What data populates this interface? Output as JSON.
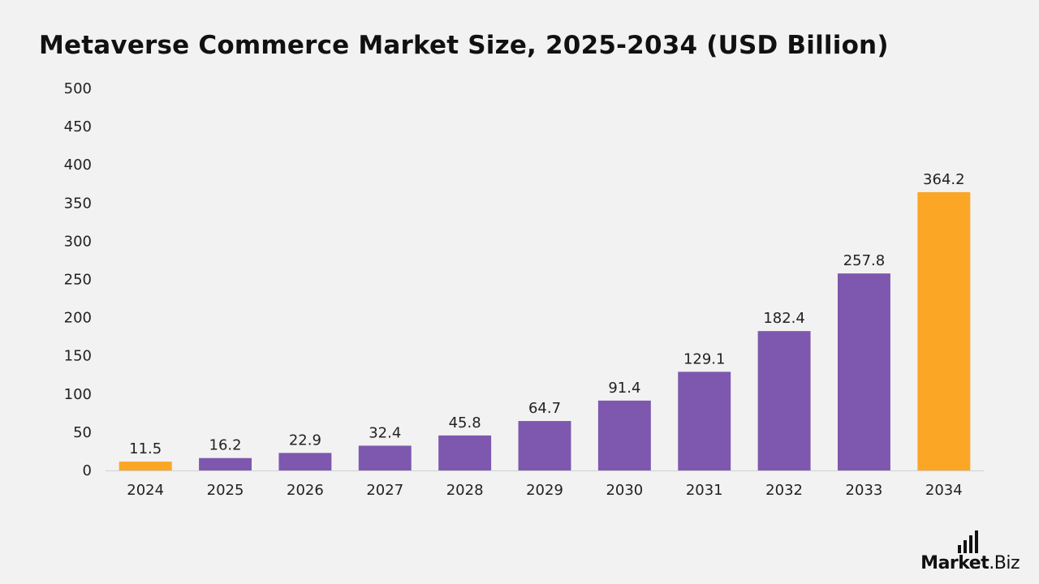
{
  "title": "Metaverse Commerce Market Size, 2025-2034 (USD Billion)",
  "brand": {
    "name_bold": "Market",
    "name_rest": ".Biz"
  },
  "colors": {
    "background": "#f2f2f2",
    "highlight": "#FBA624",
    "primary": "#7E58AE",
    "axis": "#d0d0d0",
    "text": "#222222"
  },
  "chart_data": {
    "type": "bar",
    "categories": [
      "2024",
      "2025",
      "2026",
      "2027",
      "2028",
      "2029",
      "2030",
      "2031",
      "2032",
      "2033",
      "2034"
    ],
    "values": [
      11.5,
      16.2,
      22.9,
      32.4,
      45.8,
      64.7,
      91.4,
      129.1,
      182.4,
      257.8,
      364.2
    ],
    "value_labels": [
      "11.5",
      "16.2",
      "22.9",
      "32.4",
      "45.8",
      "64.7",
      "91.4",
      "129.1",
      "182.4",
      "257.8",
      "364.2"
    ],
    "highlighted_categories": [
      "2024",
      "2034"
    ],
    "title": "Metaverse Commerce Market Size, 2025-2034 (USD Billion)",
    "xlabel": "",
    "ylabel": "",
    "ylim": [
      0,
      500
    ],
    "yticks": [
      0,
      50,
      100,
      150,
      200,
      250,
      300,
      350,
      400,
      450,
      500
    ],
    "grid": false,
    "legend": "none"
  }
}
